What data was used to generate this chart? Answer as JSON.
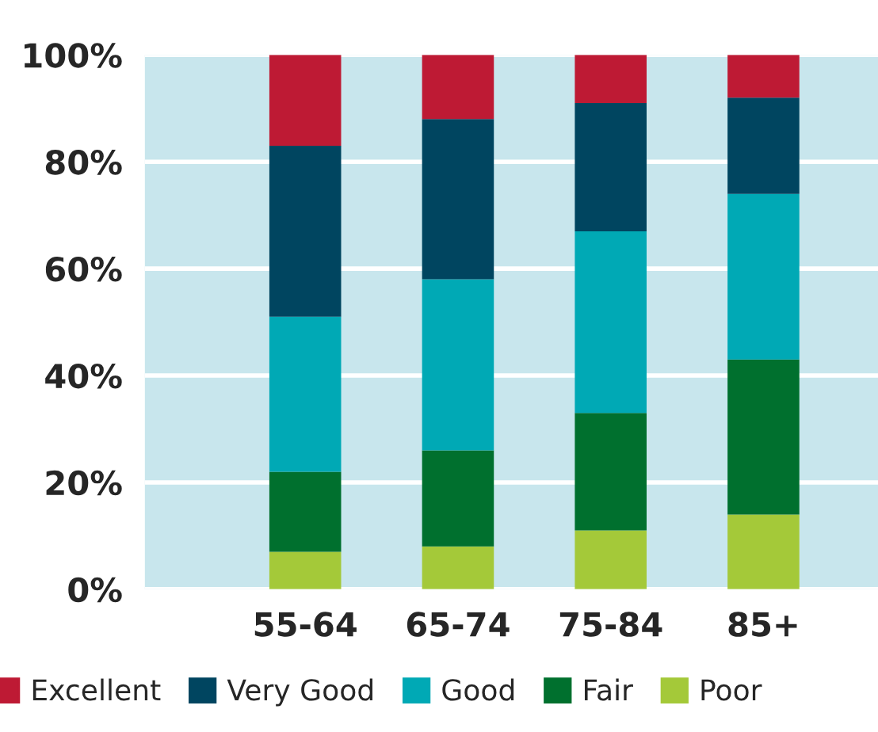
{
  "chart_data": {
    "type": "bar",
    "stacked": true,
    "categories": [
      "55-64",
      "65-74",
      "75-84",
      "85+"
    ],
    "series": [
      {
        "name": "Poor",
        "color": "#a4c939",
        "values": [
          7,
          8,
          11,
          14
        ]
      },
      {
        "name": "Fair",
        "color": "#00702e",
        "values": [
          15,
          18,
          22,
          29
        ]
      },
      {
        "name": "Good",
        "color": "#00a9b5",
        "values": [
          29,
          32,
          34,
          31
        ]
      },
      {
        "name": "Very Good",
        "color": "#004560",
        "values": [
          32,
          30,
          24,
          18
        ]
      },
      {
        "name": "Excellent",
        "color": "#be1a34",
        "values": [
          17,
          12,
          9,
          8
        ]
      }
    ],
    "ylim": [
      0,
      100
    ],
    "yticks": [
      {
        "value": 0,
        "label": "0%"
      },
      {
        "value": 20,
        "label": "20%"
      },
      {
        "value": 40,
        "label": "40%"
      },
      {
        "value": 60,
        "label": "60%"
      },
      {
        "value": 80,
        "label": "80%"
      },
      {
        "value": 100,
        "label": "100%"
      }
    ],
    "grid": "y",
    "legend": "bottom"
  }
}
